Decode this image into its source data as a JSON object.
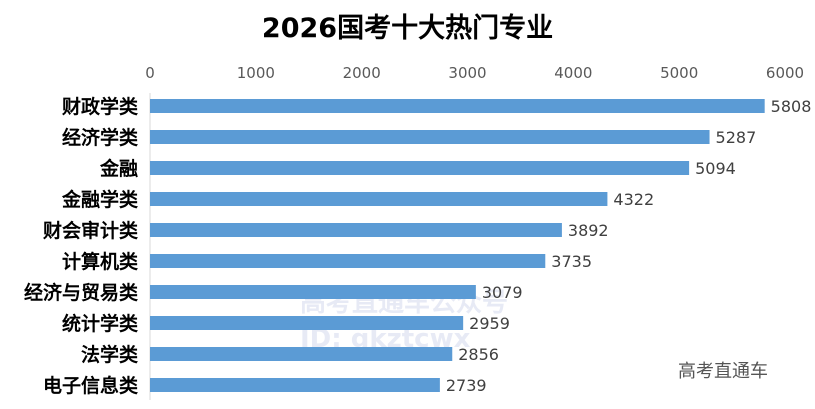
{
  "chart_data": {
    "type": "bar",
    "orientation": "horizontal",
    "title": "2026国考十大热门专业",
    "categories": [
      "财政学类",
      "经济学类",
      "金融",
      "金融学类",
      "财会审计类",
      "计算机类",
      "经济与贸易类",
      "统计学类",
      "法学类",
      "电子信息类"
    ],
    "values": [
      5808,
      5287,
      5094,
      4322,
      3892,
      3735,
      3079,
      2959,
      2856,
      2739
    ],
    "xlim": [
      0,
      6000
    ],
    "xticks": [
      "0",
      "1000",
      "2000",
      "3000",
      "4000",
      "5000",
      "6000"
    ],
    "xaxis_position": "top",
    "grid": false,
    "bar_color": "#5b9bd5"
  },
  "watermark": {
    "line1": "高考直通车公众号",
    "line2": "ID: gkztcwx",
    "corner": "高考直通车"
  }
}
